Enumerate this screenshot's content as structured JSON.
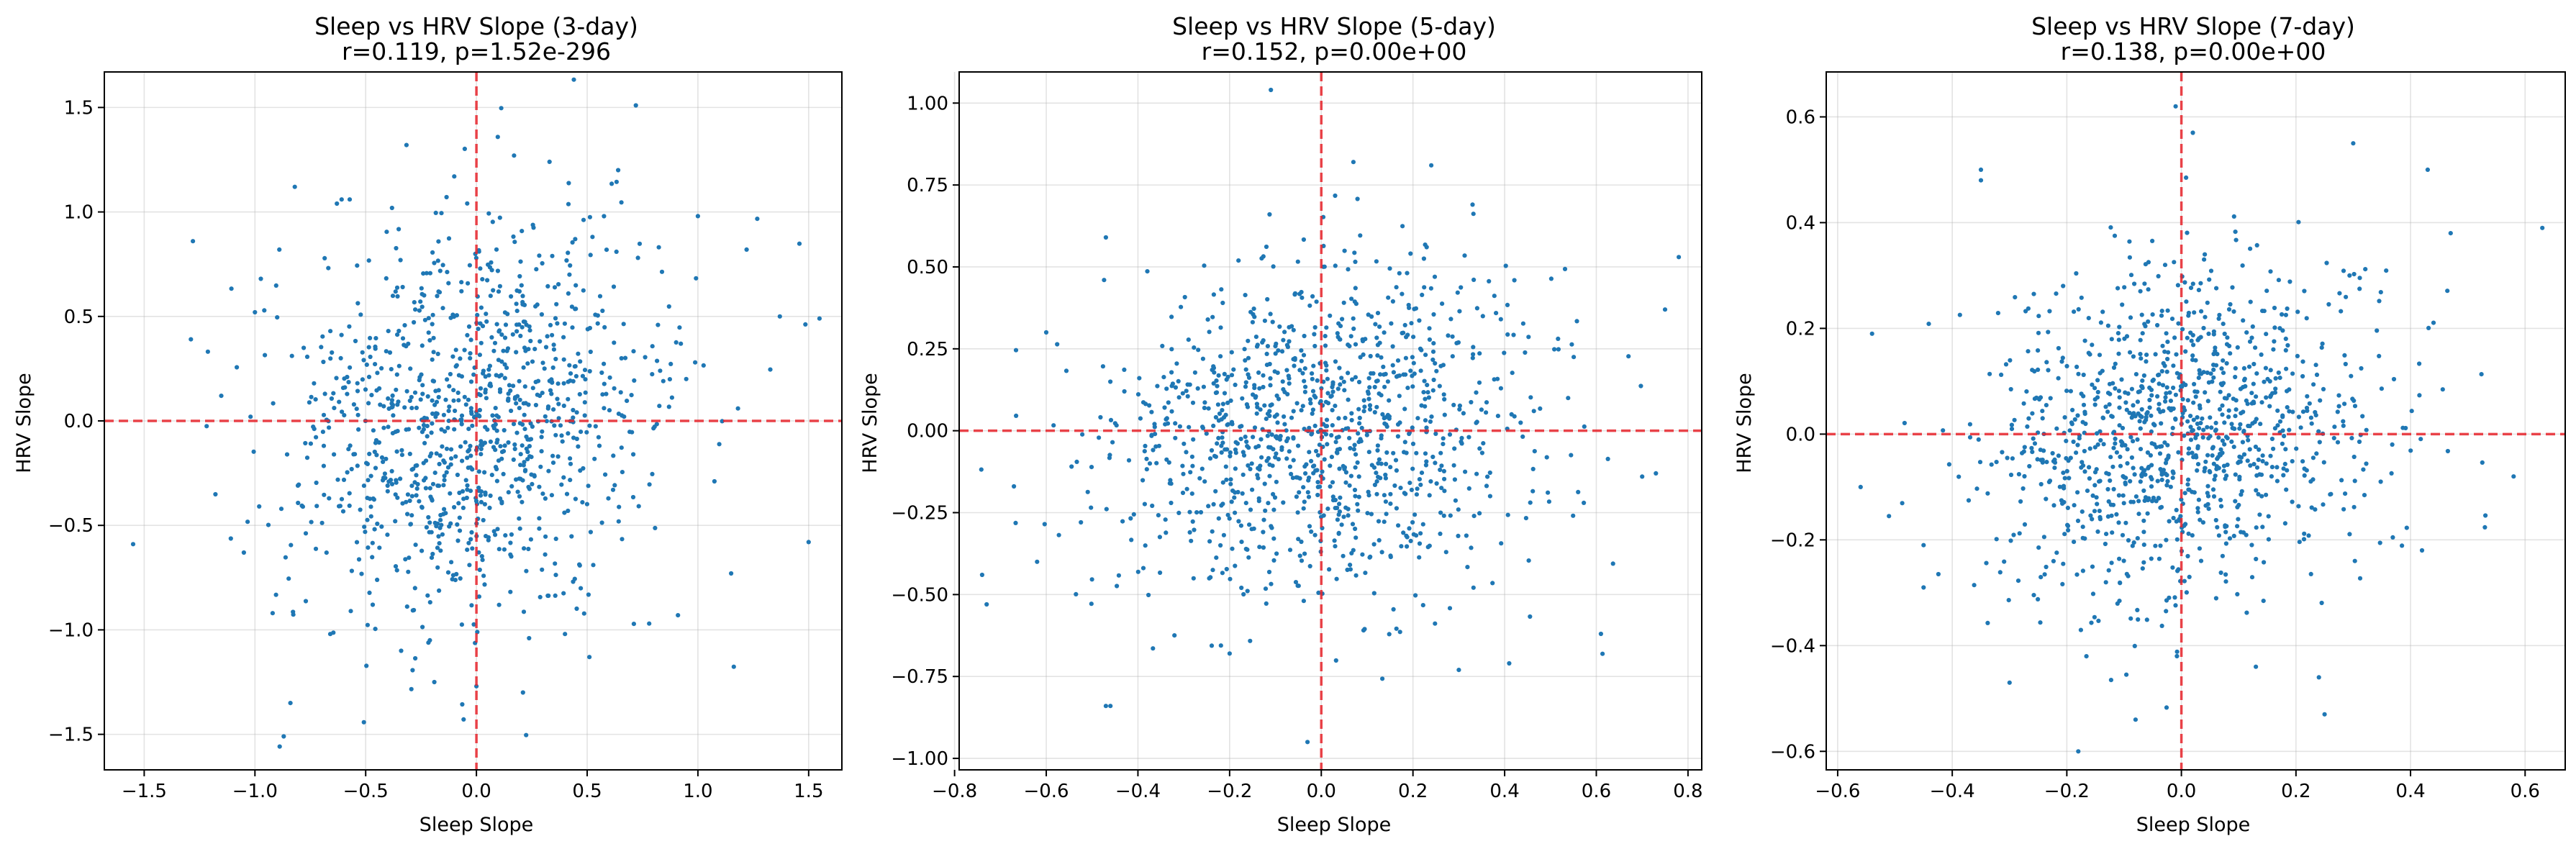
{
  "chart_data": [
    {
      "type": "scatter",
      "title": "Sleep vs HRV Slope (3-day)",
      "subtitle": "r=0.119, p=1.52e-296",
      "xlabel": "Sleep Slope",
      "ylabel": "HRV Slope",
      "xlim": [
        -1.68,
        1.65
      ],
      "ylim": [
        -1.67,
        1.67
      ],
      "xticks": [
        -1.5,
        -1.0,
        -0.5,
        0.0,
        0.5,
        1.0,
        1.5
      ],
      "xtick_labels": [
        "−1.5",
        "−1.0",
        "−0.5",
        "0.0",
        "0.5",
        "1.0",
        "1.5"
      ],
      "yticks": [
        -1.5,
        -1.0,
        -0.5,
        0.0,
        0.5,
        1.0,
        1.5
      ],
      "ytick_labels": [
        "−1.5",
        "−1.0",
        "−0.5",
        "0.0",
        "0.5",
        "1.0",
        "1.5"
      ],
      "grid": true,
      "reference_lines": {
        "x": 0,
        "y": 0,
        "color": "#e8232a"
      },
      "point_color": "#1f77b4",
      "spread": {
        "sx": 0.43,
        "sy": 0.45
      },
      "points": [
        [
          0.72,
          1.51
        ],
        [
          -0.1,
          1.17
        ],
        [
          0.17,
          1.27
        ],
        [
          0.33,
          1.24
        ],
        [
          -1.28,
          0.86
        ],
        [
          -0.82,
          1.12
        ],
        [
          -0.63,
          1.04
        ],
        [
          -0.89,
          0.82
        ],
        [
          -1.0,
          0.52
        ],
        [
          1.22,
          0.82
        ],
        [
          1.37,
          0.5
        ],
        [
          1.0,
          0.98
        ],
        [
          0.64,
          1.2
        ],
        [
          -1.55,
          -0.59
        ],
        [
          1.5,
          -0.58
        ],
        [
          -1.05,
          -0.63
        ],
        [
          1.15,
          -0.73
        ],
        [
          -0.87,
          -1.51
        ],
        [
          -0.84,
          -1.35
        ],
        [
          -0.92,
          -0.92
        ],
        [
          0.0,
          -1.27
        ],
        [
          -0.19,
          -1.25
        ],
        [
          0.21,
          -1.3
        ],
        [
          0.91,
          -0.93
        ],
        [
          0.78,
          -0.97
        ],
        [
          -0.34,
          -1.1
        ],
        [
          -0.66,
          -1.02
        ],
        [
          0.4,
          -1.02
        ],
        [
          0.51,
          -1.13
        ],
        [
          -1.02,
          0.02
        ]
      ],
      "random_points": 1060,
      "seed": 3
    },
    {
      "type": "scatter",
      "title": "Sleep vs HRV Slope (5-day)",
      "subtitle": "r=0.152, p=0.00e+00",
      "xlabel": "Sleep Slope",
      "ylabel": "HRV Slope",
      "xlim": [
        -0.79,
        0.83
      ],
      "ylim": [
        -1.035,
        1.095
      ],
      "xticks": [
        -0.8,
        -0.6,
        -0.4,
        -0.2,
        0.0,
        0.2,
        0.4,
        0.6,
        0.8
      ],
      "xtick_labels": [
        "−0.8",
        "−0.6",
        "−0.4",
        "−0.2",
        "0.0",
        "0.2",
        "0.4",
        "0.6",
        "0.8"
      ],
      "yticks": [
        -1.0,
        -0.75,
        -0.5,
        -0.25,
        0.0,
        0.25,
        0.5,
        0.75,
        1.0
      ],
      "ytick_labels": [
        "−1.00",
        "−0.75",
        "−0.50",
        "−0.25",
        "0.00",
        "0.25",
        "0.50",
        "0.75",
        "1.00"
      ],
      "grid": true,
      "reference_lines": {
        "x": 0,
        "y": 0,
        "color": "#e8232a"
      },
      "point_color": "#1f77b4",
      "spread": {
        "sx": 0.23,
        "sy": 0.25
      },
      "points": [
        [
          -0.11,
          1.04
        ],
        [
          0.07,
          0.82
        ],
        [
          0.24,
          0.81
        ],
        [
          0.33,
          0.69
        ],
        [
          0.78,
          0.53
        ],
        [
          -0.47,
          0.59
        ],
        [
          -0.6,
          0.3
        ],
        [
          -0.74,
          -0.44
        ],
        [
          -0.73,
          -0.53
        ],
        [
          -0.47,
          -0.84
        ],
        [
          -0.46,
          -0.84
        ],
        [
          -0.03,
          -0.95
        ],
        [
          0.3,
          -0.73
        ],
        [
          0.41,
          -0.71
        ],
        [
          0.75,
          0.37
        ],
        [
          0.7,
          -0.14
        ],
        [
          0.73,
          -0.13
        ],
        [
          0.61,
          -0.62
        ],
        [
          -0.62,
          -0.4
        ],
        [
          -0.2,
          -0.68
        ]
      ],
      "random_points": 1080,
      "seed": 5
    },
    {
      "type": "scatter",
      "title": "Sleep vs HRV Slope (7-day)",
      "subtitle": "r=0.138, p=0.00e+00",
      "xlabel": "Sleep Slope",
      "ylabel": "HRV Slope",
      "xlim": [
        -0.62,
        0.67
      ],
      "ylim": [
        -0.635,
        0.685
      ],
      "xticks": [
        -0.6,
        -0.4,
        -0.2,
        0.0,
        0.2,
        0.4,
        0.6
      ],
      "xtick_labels": [
        "−0.6",
        "−0.4",
        "−0.2",
        "0.0",
        "0.2",
        "0.4",
        "0.6"
      ],
      "yticks": [
        -0.6,
        -0.4,
        -0.2,
        0.0,
        0.2,
        0.4,
        0.6
      ],
      "ytick_labels": [
        "−0.6",
        "−0.4",
        "−0.2",
        "0.0",
        "0.2",
        "0.4",
        "0.6"
      ],
      "grid": true,
      "reference_lines": {
        "x": 0,
        "y": 0,
        "color": "#e8232a"
      },
      "point_color": "#1f77b4",
      "spread": {
        "sx": 0.17,
        "sy": 0.16
      },
      "points": [
        [
          -0.01,
          0.62
        ],
        [
          0.02,
          0.57
        ],
        [
          0.3,
          0.55
        ],
        [
          0.43,
          0.5
        ],
        [
          -0.35,
          0.5
        ],
        [
          -0.35,
          0.48
        ],
        [
          0.63,
          0.39
        ],
        [
          0.47,
          0.38
        ],
        [
          -0.54,
          0.19
        ],
        [
          -0.56,
          -0.1
        ],
        [
          -0.45,
          -0.21
        ],
        [
          -0.45,
          -0.29
        ],
        [
          -0.18,
          -0.6
        ],
        [
          -0.08,
          -0.54
        ],
        [
          0.25,
          -0.53
        ],
        [
          0.24,
          -0.46
        ],
        [
          0.58,
          -0.08
        ],
        [
          0.42,
          -0.22
        ],
        [
          -0.3,
          -0.47
        ],
        [
          0.13,
          -0.44
        ]
      ],
      "random_points": 1080,
      "seed": 7
    }
  ]
}
